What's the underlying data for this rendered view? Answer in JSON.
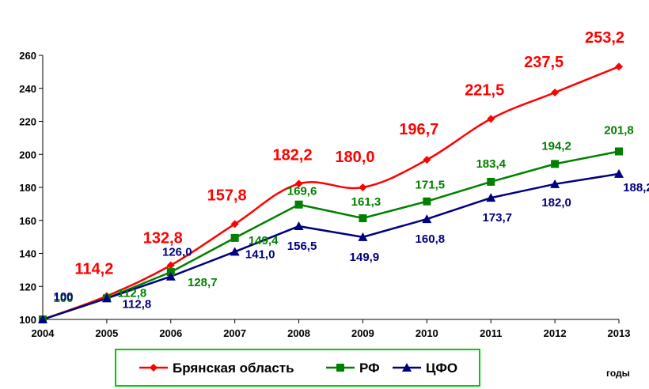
{
  "chart_data": {
    "type": "line",
    "x": [
      "2004",
      "2005",
      "2006",
      "2007",
      "2008",
      "2009",
      "2010",
      "2011",
      "2012",
      "2013"
    ],
    "ylim": [
      100,
      260
    ],
    "yticks": [
      "100",
      "120",
      "140",
      "160",
      "180",
      "200",
      "220",
      "240",
      "260"
    ],
    "yticks_values": [
      100,
      120,
      140,
      160,
      180,
      200,
      220,
      240,
      260
    ],
    "xlabel": "годы",
    "grid": false,
    "legend_position": "bottom",
    "series": [
      {
        "name": "Брянская область",
        "color": "#ff0000",
        "marker": "diamond",
        "values": [
          100,
          114.2,
          132.8,
          157.8,
          182.2,
          180.0,
          196.7,
          221.5,
          237.5,
          253.2
        ],
        "labels": [
          "",
          "114,2",
          "132,8",
          "157,8",
          "182,2",
          "180,0",
          "196,7",
          "221,5",
          "237,5",
          "253,2"
        ]
      },
      {
        "name": "РФ",
        "color": "#008000",
        "marker": "square",
        "values": [
          100,
          112.8,
          128.7,
          149.4,
          169.6,
          161.3,
          171.5,
          183.4,
          194.2,
          201.8
        ],
        "labels": [
          "100",
          "112,8",
          "128,7",
          "149,4",
          "169,6",
          "161,3",
          "171,5",
          "183,4",
          "194,2",
          "201,8"
        ]
      },
      {
        "name": "ЦФО",
        "color": "#000080",
        "marker": "triangle",
        "values": [
          100,
          112.8,
          126.0,
          141.0,
          156.5,
          149.9,
          160.8,
          173.7,
          182.0,
          188.2
        ],
        "labels": [
          "100",
          "112,8",
          "126,0",
          "141,0",
          "156,5",
          "149,9",
          "160,8",
          "173,7",
          "182,0",
          "188,2"
        ]
      }
    ]
  }
}
